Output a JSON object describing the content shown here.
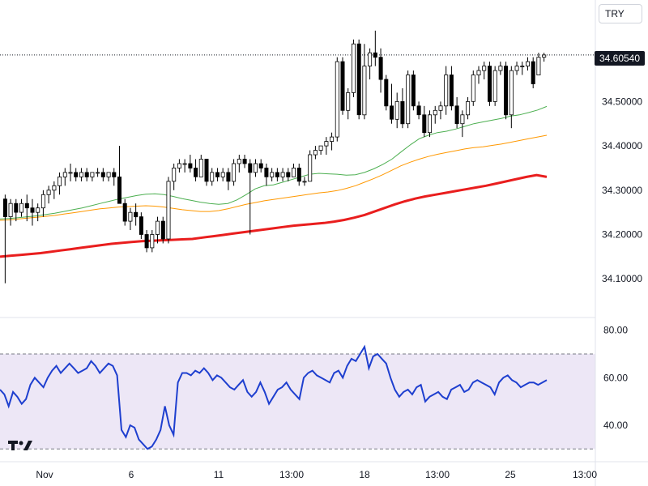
{
  "toolbar": {
    "currency": "TRY"
  },
  "last_price": "34.60540",
  "colors": {
    "candle_up": "#ffffff",
    "candle_down": "#000000",
    "ma_fast": "#4caf50",
    "ma_mid": "#ff9800",
    "ma_slow": "#e91e1e",
    "rsi": "#1e3fcf",
    "rsi_band": "#ede7f6"
  },
  "logo_icon": "tradingview-logo-icon",
  "chart_data": [
    {
      "type": "candlestick",
      "title": "",
      "x_ticks": [
        "Nov",
        "6",
        "11",
        "13:00",
        "18",
        "13:00",
        "25",
        "13:00"
      ],
      "y_ticks": [
        "34.10000",
        "34.20000",
        "34.30000",
        "34.40000",
        "34.50000"
      ],
      "ylim": [
        34.02,
        34.72
      ],
      "grid": false,
      "candles": [
        [
          34.28,
          34.29,
          34.09,
          34.24
        ],
        [
          34.24,
          34.28,
          34.22,
          34.27
        ],
        [
          34.27,
          34.28,
          34.23,
          34.25
        ],
        [
          34.25,
          34.28,
          34.24,
          34.27
        ],
        [
          34.27,
          34.29,
          34.23,
          34.26
        ],
        [
          34.26,
          34.28,
          34.22,
          34.25
        ],
        [
          34.25,
          34.27,
          34.23,
          34.26
        ],
        [
          34.26,
          34.3,
          34.24,
          34.29
        ],
        [
          34.29,
          34.31,
          34.27,
          34.3
        ],
        [
          34.3,
          34.32,
          34.28,
          34.31
        ],
        [
          34.31,
          34.34,
          34.29,
          34.33
        ],
        [
          34.33,
          34.35,
          34.31,
          34.34
        ],
        [
          34.34,
          34.36,
          34.32,
          34.34
        ],
        [
          34.34,
          34.35,
          34.32,
          34.33
        ],
        [
          34.33,
          34.35,
          34.32,
          34.34
        ],
        [
          34.34,
          34.35,
          34.32,
          34.33
        ],
        [
          34.33,
          34.34,
          34.32,
          34.34
        ],
        [
          34.34,
          34.35,
          34.33,
          34.34
        ],
        [
          34.34,
          34.35,
          34.32,
          34.33
        ],
        [
          34.33,
          34.34,
          34.32,
          34.34
        ],
        [
          34.34,
          34.35,
          34.31,
          34.33
        ],
        [
          34.33,
          34.4,
          34.27,
          34.27
        ],
        [
          34.27,
          34.28,
          34.22,
          34.23
        ],
        [
          34.23,
          34.26,
          34.21,
          34.25
        ],
        [
          34.25,
          34.27,
          34.22,
          34.24
        ],
        [
          34.24,
          34.25,
          34.19,
          34.2
        ],
        [
          34.2,
          34.21,
          34.16,
          34.17
        ],
        [
          34.17,
          34.21,
          34.16,
          34.2
        ],
        [
          34.2,
          34.24,
          34.18,
          34.23
        ],
        [
          34.23,
          34.24,
          34.18,
          34.19
        ],
        [
          34.19,
          34.33,
          34.18,
          34.32
        ],
        [
          34.32,
          34.36,
          34.3,
          34.35
        ],
        [
          34.35,
          34.37,
          34.34,
          34.36
        ],
        [
          34.36,
          34.37,
          34.34,
          34.36
        ],
        [
          34.36,
          34.38,
          34.34,
          34.35
        ],
        [
          34.35,
          34.37,
          34.32,
          34.33
        ],
        [
          34.33,
          34.38,
          34.33,
          34.37
        ],
        [
          34.37,
          34.37,
          34.31,
          34.32
        ],
        [
          34.32,
          34.35,
          34.31,
          34.34
        ],
        [
          34.34,
          34.35,
          34.32,
          34.33
        ],
        [
          34.33,
          34.35,
          34.32,
          34.34
        ],
        [
          34.34,
          34.35,
          34.3,
          34.32
        ],
        [
          34.32,
          34.37,
          34.31,
          34.36
        ],
        [
          34.36,
          34.38,
          34.34,
          34.37
        ],
        [
          34.37,
          34.38,
          34.35,
          34.36
        ],
        [
          34.36,
          34.37,
          34.2,
          34.34
        ],
        [
          34.34,
          34.37,
          34.33,
          34.36
        ],
        [
          34.36,
          34.37,
          34.34,
          34.35
        ],
        [
          34.35,
          34.36,
          34.31,
          34.33
        ],
        [
          34.33,
          34.35,
          34.32,
          34.34
        ],
        [
          34.34,
          34.35,
          34.32,
          34.33
        ],
        [
          34.33,
          34.35,
          34.32,
          34.34
        ],
        [
          34.34,
          34.35,
          34.32,
          34.33
        ],
        [
          34.33,
          34.36,
          34.33,
          34.35
        ],
        [
          34.35,
          34.36,
          34.31,
          34.32
        ],
        [
          34.32,
          34.33,
          34.31,
          34.32
        ],
        [
          34.32,
          34.39,
          34.32,
          34.38
        ],
        [
          34.38,
          34.4,
          34.37,
          34.39
        ],
        [
          34.39,
          34.4,
          34.38,
          34.4
        ],
        [
          34.4,
          34.42,
          34.38,
          34.41
        ],
        [
          34.41,
          34.43,
          34.39,
          34.42
        ],
        [
          34.42,
          34.6,
          34.41,
          34.59
        ],
        [
          34.59,
          34.6,
          34.47,
          34.48
        ],
        [
          34.48,
          34.53,
          34.46,
          34.52
        ],
        [
          34.52,
          34.64,
          34.51,
          34.63
        ],
        [
          34.63,
          34.64,
          34.46,
          34.47
        ],
        [
          34.47,
          34.63,
          34.46,
          34.58
        ],
        [
          34.58,
          34.62,
          34.55,
          34.61
        ],
        [
          34.61,
          34.66,
          34.58,
          34.6
        ],
        [
          34.6,
          34.62,
          34.52,
          34.55
        ],
        [
          34.55,
          34.56,
          34.48,
          34.49
        ],
        [
          34.49,
          34.54,
          34.45,
          34.46
        ],
        [
          34.46,
          34.52,
          34.44,
          34.5
        ],
        [
          34.5,
          34.53,
          34.44,
          34.45
        ],
        [
          34.45,
          34.57,
          34.44,
          34.56
        ],
        [
          34.56,
          34.57,
          34.48,
          34.49
        ],
        [
          34.49,
          34.5,
          34.46,
          34.47
        ],
        [
          34.47,
          34.49,
          34.42,
          34.43
        ],
        [
          34.43,
          34.48,
          34.42,
          34.47
        ],
        [
          34.47,
          34.49,
          34.45,
          34.48
        ],
        [
          34.48,
          34.5,
          34.46,
          34.49
        ],
        [
          34.49,
          34.58,
          34.47,
          34.56
        ],
        [
          34.56,
          34.58,
          34.48,
          34.49
        ],
        [
          34.49,
          34.51,
          34.44,
          34.45
        ],
        [
          34.45,
          34.48,
          34.42,
          34.47
        ],
        [
          34.47,
          34.51,
          34.46,
          34.5
        ],
        [
          34.5,
          34.57,
          34.49,
          34.56
        ],
        [
          34.56,
          34.58,
          34.54,
          34.57
        ],
        [
          34.57,
          34.59,
          34.55,
          34.58
        ],
        [
          34.58,
          34.59,
          34.49,
          34.5
        ],
        [
          34.5,
          34.58,
          34.49,
          34.57
        ],
        [
          34.57,
          34.59,
          34.56,
          34.58
        ],
        [
          34.58,
          34.59,
          34.46,
          34.47
        ],
        [
          34.47,
          34.58,
          34.44,
          34.57
        ],
        [
          34.57,
          34.59,
          34.56,
          34.58
        ],
        [
          34.58,
          34.59,
          34.56,
          34.58
        ],
        [
          34.58,
          34.6,
          34.57,
          34.59
        ],
        [
          34.59,
          34.6,
          34.53,
          34.54
        ],
        [
          34.56,
          34.61,
          34.56,
          34.6
        ],
        [
          34.6,
          34.61,
          34.59,
          34.605
        ]
      ],
      "series": [
        {
          "values": [
            34.235,
            34.236,
            34.238,
            34.24,
            34.242,
            34.245,
            34.248,
            34.252,
            34.256,
            34.26,
            34.265,
            34.27,
            34.275,
            34.28,
            34.284,
            34.288,
            34.291,
            34.292,
            34.29,
            34.286,
            34.281,
            34.277,
            34.273,
            34.27,
            34.268,
            34.27,
            34.278,
            34.29,
            34.303,
            34.31,
            34.312,
            34.318,
            34.324,
            34.33,
            34.336,
            34.338,
            34.337,
            34.336,
            34.334,
            34.335,
            34.34,
            34.348,
            34.358,
            34.37,
            34.386,
            34.402,
            34.416,
            34.424,
            34.43,
            34.433,
            34.438,
            34.444,
            34.45,
            34.454,
            34.458,
            34.462,
            34.467,
            34.47,
            34.475,
            34.481,
            34.489
          ]
        },
        {
          "values": [
            34.232,
            34.233,
            34.235,
            34.237,
            34.239,
            34.241,
            34.243,
            34.246,
            34.249,
            34.252,
            34.255,
            34.258,
            34.26,
            34.262,
            34.263,
            34.264,
            34.265,
            34.264,
            34.262,
            34.259,
            34.256,
            34.254,
            34.252,
            34.252,
            34.254,
            34.258,
            34.263,
            34.268,
            34.272,
            34.276,
            34.279,
            34.282,
            34.285,
            34.288,
            34.291,
            34.294,
            34.296,
            34.299,
            34.304,
            34.31,
            34.318,
            34.326,
            34.335,
            34.345,
            34.355,
            34.363,
            34.37,
            34.376,
            34.381,
            34.385,
            34.389,
            34.393,
            34.396,
            34.398,
            34.401,
            34.404,
            34.408,
            34.412,
            34.416,
            34.42,
            34.424
          ]
        },
        {
          "values": [
            34.15,
            34.152,
            34.154,
            34.156,
            34.158,
            34.161,
            34.164,
            34.167,
            34.17,
            34.173,
            34.176,
            34.179,
            34.181,
            34.183,
            34.185,
            34.186,
            34.187,
            34.188,
            34.189,
            34.19,
            34.193,
            34.196,
            34.199,
            34.202,
            34.205,
            34.208,
            34.211,
            34.214,
            34.217,
            34.22,
            34.222,
            34.224,
            34.226,
            34.229,
            34.233,
            34.238,
            34.244,
            34.252,
            34.26,
            34.268,
            34.275,
            34.281,
            34.286,
            34.29,
            34.294,
            34.298,
            34.302,
            34.306,
            34.31,
            34.315,
            34.32,
            34.325,
            34.33,
            34.334,
            34.33
          ]
        }
      ]
    },
    {
      "type": "line",
      "title": "",
      "y_ticks": [
        "80.00",
        "60.00",
        "40.00"
      ],
      "ylim": [
        26,
        84
      ],
      "band": [
        30,
        70
      ],
      "grid": false,
      "series": [
        {
          "values": [
            55,
            53,
            48,
            54,
            52,
            49,
            51,
            57,
            60,
            58,
            56,
            60,
            63,
            65,
            62,
            64,
            66,
            64,
            62,
            63,
            64,
            67,
            65,
            62,
            64,
            66,
            65,
            61,
            38,
            35,
            40,
            39,
            34,
            32,
            30,
            31,
            34,
            38,
            48,
            40,
            36,
            58,
            62,
            62,
            61,
            63,
            62,
            64,
            62,
            59,
            61,
            60,
            58,
            56,
            55,
            57,
            59,
            54,
            52,
            54,
            58,
            54,
            49,
            52,
            55,
            56,
            58,
            55,
            53,
            51,
            60,
            62,
            63,
            61,
            60,
            59,
            58,
            62,
            63,
            60,
            65,
            68,
            67,
            70,
            73,
            64,
            69,
            70,
            68,
            66,
            60,
            55,
            52,
            54,
            55,
            53,
            56,
            57,
            50,
            52,
            53,
            54,
            52,
            51,
            55,
            56,
            57,
            54,
            55,
            58,
            59,
            58,
            57,
            56,
            53,
            58,
            60,
            61,
            59,
            58,
            56,
            57,
            58,
            58,
            57,
            58,
            59
          ]
        }
      ]
    }
  ]
}
